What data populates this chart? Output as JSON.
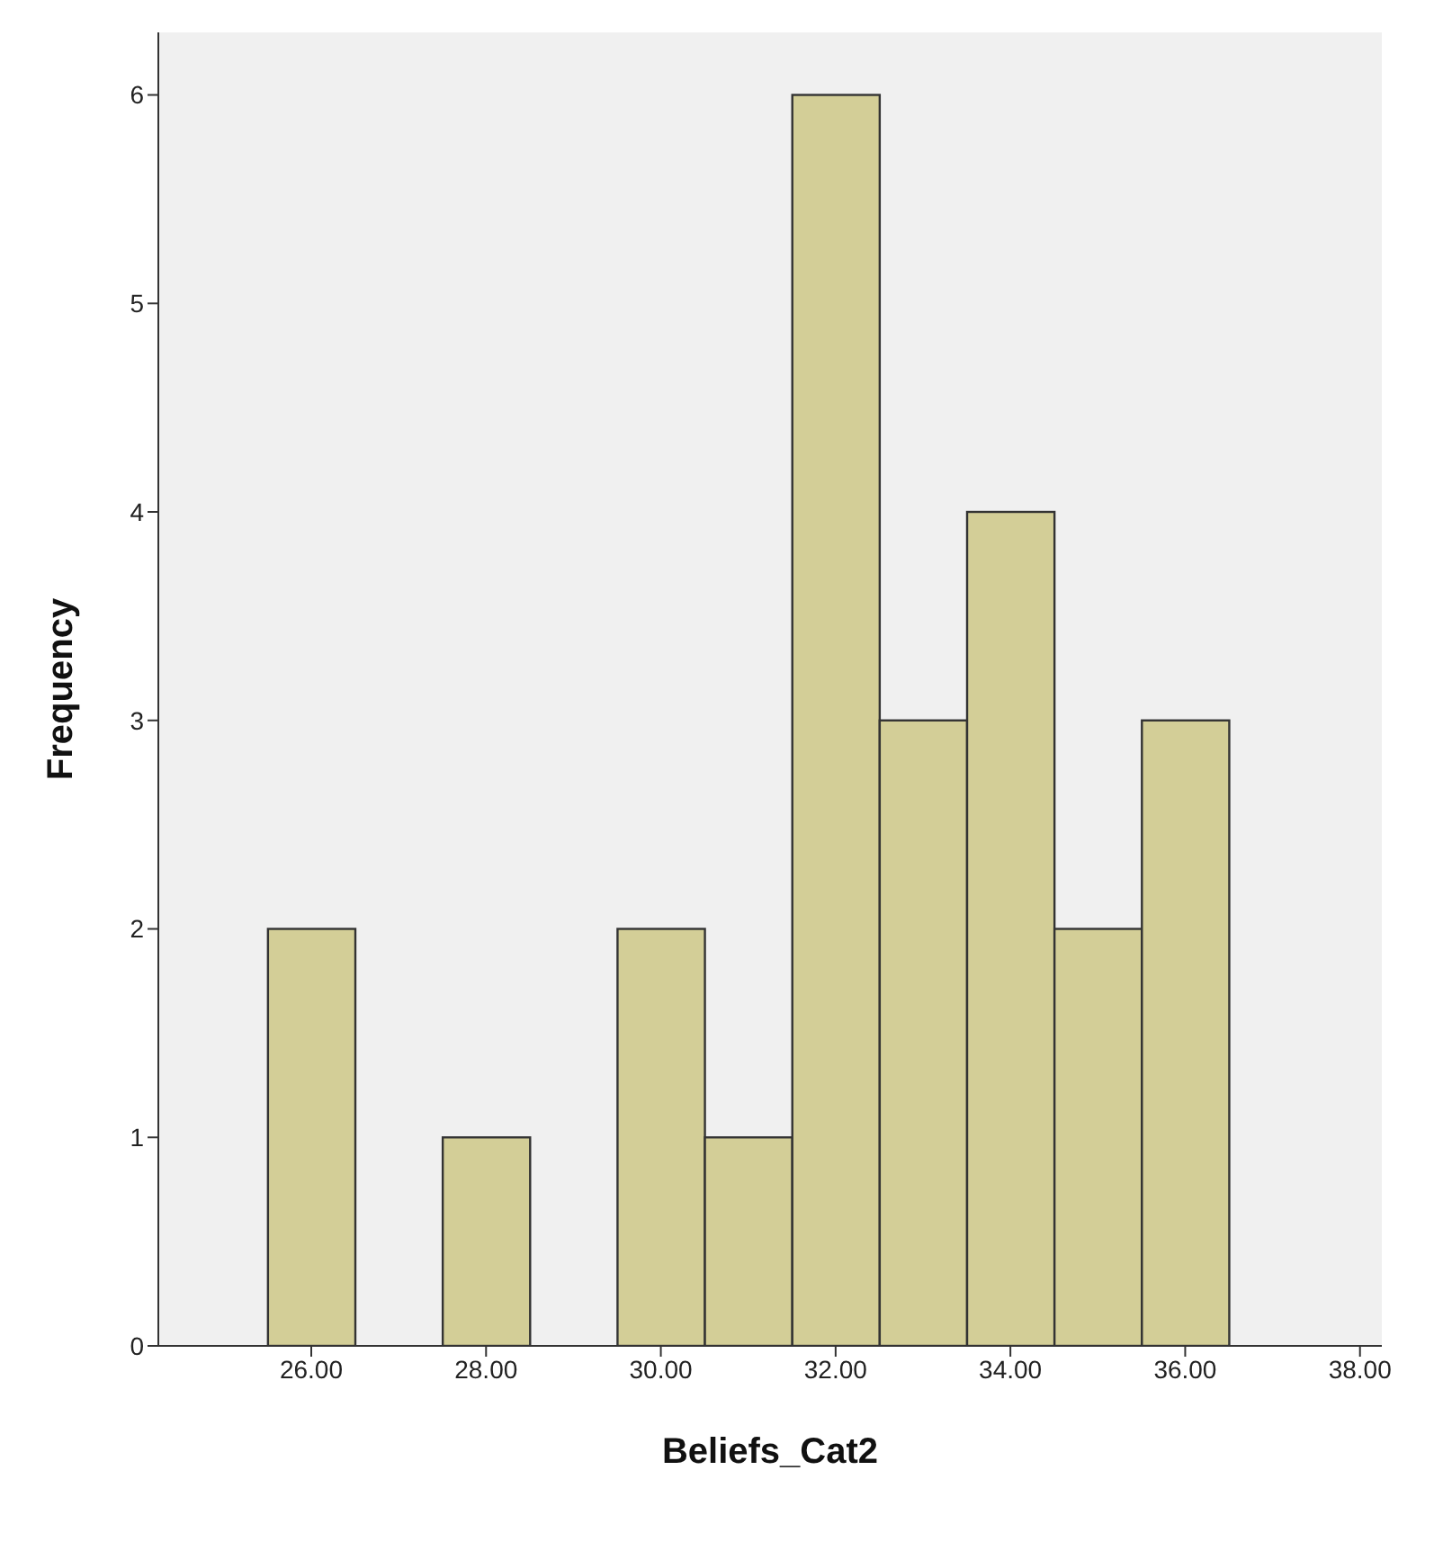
{
  "chart_data": {
    "type": "histogram",
    "xlabel": "Beliefs_Cat2",
    "ylabel": "Frequency",
    "bins": [
      25.5,
      26.5,
      27.5,
      28.5,
      29.5,
      30.5,
      31.5,
      32.5,
      33.5,
      34.5,
      35.5,
      36.5
    ],
    "values": [
      2,
      0,
      1,
      0,
      2,
      1,
      6,
      3,
      4,
      2,
      3
    ],
    "color": "#d3ce97",
    "xlim": [
      24.25,
      38.25
    ],
    "xticks": [
      {
        "value": 26,
        "label": "26.00"
      },
      {
        "value": 28,
        "label": "28.00"
      },
      {
        "value": 30,
        "label": "30.00"
      },
      {
        "value": 32,
        "label": "32.00"
      },
      {
        "value": 34,
        "label": "34.00"
      },
      {
        "value": 36,
        "label": "36.00"
      },
      {
        "value": 38,
        "label": "38.00"
      }
    ],
    "ylim": [
      0,
      6.3
    ],
    "yticks": [
      0,
      1,
      2,
      3,
      4,
      5,
      6
    ],
    "grid": false,
    "legend": false
  }
}
